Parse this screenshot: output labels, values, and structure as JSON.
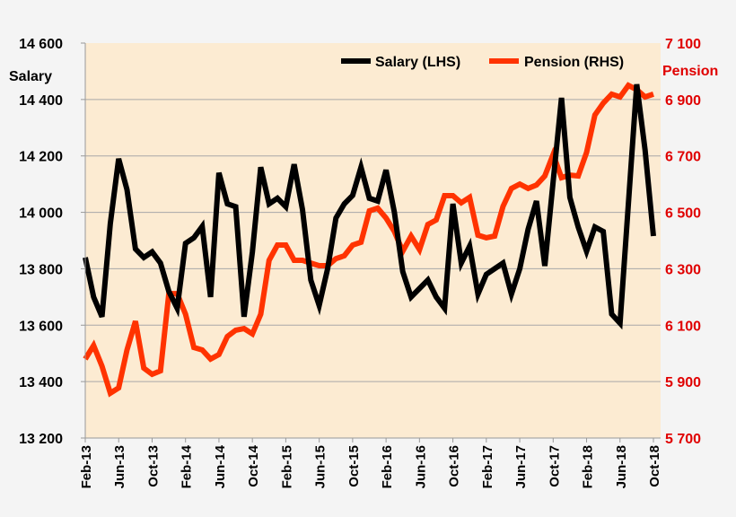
{
  "chart_data": {
    "type": "line",
    "title": "",
    "legend_position": "top-right",
    "grid": true,
    "colors": {
      "background": "#FCEBD2",
      "salary": "#000000",
      "pension": "#FF3300",
      "rhs_text": "#E00000"
    },
    "y_left": {
      "label": "Salary",
      "lim": [
        13200,
        14600
      ],
      "ticks": [
        "13 200",
        "13 400",
        "13 600",
        "13 800",
        "14 000",
        "14 200",
        "14 400",
        "14 600"
      ]
    },
    "y_right": {
      "label": "Pension",
      "lim": [
        5700,
        7100
      ],
      "ticks": [
        "5 700",
        "5 900",
        "6 100",
        "6 300",
        "6 500",
        "6 700",
        "6 900",
        "7 100"
      ]
    },
    "x_tick_labels": [
      "Feb-13",
      "Jun-13",
      "Oct-13",
      "Feb-14",
      "Jun-14",
      "Oct-14",
      "Feb-15",
      "Jun-15",
      "Oct-15",
      "Feb-16",
      "Jun-16",
      "Oct-16",
      "Feb-17",
      "Jun-17",
      "Oct-17",
      "Feb-18",
      "Jun-18",
      "Oct-18"
    ],
    "x_start": "Feb-13",
    "x_end": "Oct-18",
    "series": [
      {
        "name": "Salary (LHS)",
        "axis": "left",
        "values": [
          13840,
          13700,
          13630,
          13960,
          14190,
          14080,
          13870,
          13840,
          13860,
          13820,
          13720,
          13660,
          13890,
          13910,
          13950,
          13700,
          14140,
          14030,
          14020,
          13630,
          13860,
          14160,
          14030,
          14050,
          14020,
          14170,
          14010,
          13760,
          13670,
          13800,
          13980,
          14030,
          14060,
          14160,
          14050,
          14040,
          14150,
          14000,
          13790,
          13700,
          13730,
          13760,
          13700,
          13660,
          14030,
          13820,
          13880,
          13710,
          13780,
          13800,
          13820,
          13710,
          13800,
          13940,
          14040,
          13810,
          14110,
          14406,
          14053,
          13948,
          13862,
          13948,
          13932,
          13639,
          13607,
          14030,
          14454,
          14221,
          13916
        ]
      },
      {
        "name": "Pension (RHS)",
        "axis": "right",
        "values": [
          5980,
          6028,
          5955,
          5859,
          5878,
          6012,
          6114,
          5948,
          5926,
          5938,
          6212,
          6212,
          6139,
          6021,
          6012,
          5980,
          5996,
          6060,
          6082,
          6088,
          6069,
          6139,
          6330,
          6384,
          6384,
          6330,
          6330,
          6320,
          6311,
          6311,
          6336,
          6346,
          6384,
          6394,
          6505,
          6515,
          6480,
          6432,
          6362,
          6416,
          6368,
          6457,
          6473,
          6559,
          6559,
          6534,
          6553,
          6419,
          6410,
          6416,
          6521,
          6585,
          6600,
          6585,
          6597,
          6629,
          6705,
          6623,
          6632,
          6629,
          6712,
          6845,
          6887,
          6919,
          6909,
          6950,
          6935,
          6909,
          6919
        ]
      }
    ]
  }
}
